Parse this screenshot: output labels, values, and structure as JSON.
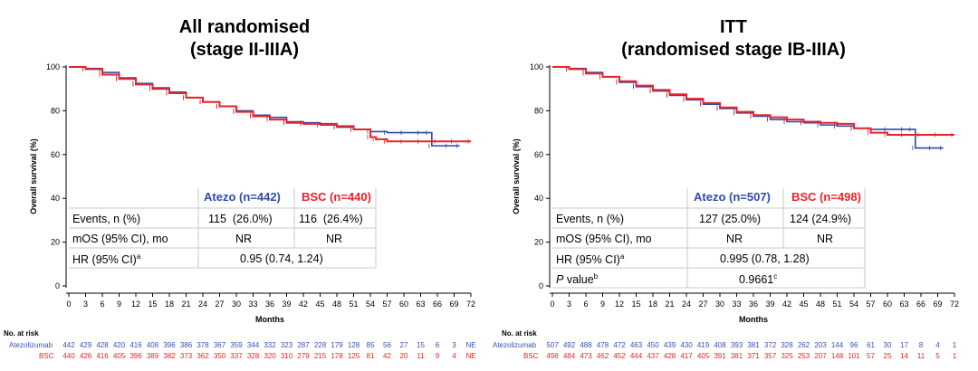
{
  "colors": {
    "atezo": "#2e4ba8",
    "bsc": "#e8232b",
    "axis": "#000000",
    "grid": "#c8c8c8"
  },
  "chart_data": [
    {
      "type": "line",
      "title": "All randomised",
      "subtitle": "(stage II-IIIA)",
      "xlabel": "Months",
      "ylabel": "Overall survival (%)",
      "xlim": [
        0,
        72
      ],
      "ylim": [
        0,
        100
      ],
      "x_ticks": [
        "0",
        "3",
        "6",
        "9",
        "12",
        "15",
        "18",
        "21",
        "24",
        "27",
        "30",
        "33",
        "36",
        "39",
        "42",
        "45",
        "48",
        "51",
        "54",
        "57",
        "60",
        "63",
        "66",
        "69",
        "72"
      ],
      "y_ticks": [
        "0",
        "20",
        "40",
        "60",
        "80",
        "100"
      ],
      "series": [
        {
          "name": "Atezo",
          "x": [
            0,
            3,
            6,
            9,
            12,
            15,
            18,
            21,
            24,
            27,
            30,
            33,
            36,
            39,
            42,
            45,
            48,
            51,
            54,
            57,
            60,
            63,
            64.5,
            65,
            68,
            70
          ],
          "values": [
            100,
            99.3,
            97.5,
            95,
            92.5,
            90.5,
            88.5,
            86,
            84,
            82,
            80,
            78,
            77,
            75,
            74.5,
            73.5,
            72.5,
            71.5,
            70.5,
            70,
            70,
            70,
            70,
            64,
            64,
            64
          ]
        },
        {
          "name": "BSC",
          "x": [
            0,
            3,
            6,
            9,
            12,
            15,
            18,
            21,
            24,
            27,
            30,
            33,
            36,
            39,
            42,
            45,
            48,
            51,
            54,
            55,
            57,
            60,
            63,
            66,
            69,
            72
          ],
          "values": [
            100,
            99,
            96.5,
            94.5,
            92,
            90,
            88,
            86,
            84,
            82,
            79.5,
            77.5,
            76,
            74.5,
            74,
            74,
            73,
            71.5,
            68,
            67,
            66,
            66,
            66,
            66,
            66,
            66
          ]
        }
      ],
      "table": {
        "header": [
          "",
          "Atezo (n=442)",
          "BSC (n=440)"
        ],
        "rows": [
          {
            "label": "Events, n (%)",
            "atezo": "115  (26.0%)",
            "bsc": "116  (26.4%)"
          },
          {
            "label": "mOS (95% CI), mo",
            "atezo": "NR",
            "bsc": "NR"
          },
          {
            "label": "HR (95% CI)",
            "sup": "a",
            "merged": "0.95 (0.74, 1.24)"
          }
        ]
      },
      "risk_table": {
        "title": "No. at risk",
        "atezo_label": "Atezolizumab",
        "bsc_label": "BSC",
        "atezo": [
          "442",
          "429",
          "428",
          "420",
          "416",
          "408",
          "396",
          "386",
          "378",
          "367",
          "359",
          "344",
          "332",
          "323",
          "287",
          "228",
          "179",
          "128",
          "85",
          "56",
          "27",
          "15",
          "6",
          "3",
          "NE"
        ],
        "bsc": [
          "440",
          "426",
          "416",
          "405",
          "396",
          "389",
          "382",
          "373",
          "362",
          "350",
          "337",
          "328",
          "320",
          "310",
          "279",
          "215",
          "178",
          "125",
          "81",
          "42",
          "20",
          "11",
          "9",
          "4",
          "NE"
        ]
      }
    },
    {
      "type": "line",
      "title": "ITT",
      "subtitle": "(randomised stage IB-IIIA)",
      "xlabel": "Months",
      "ylabel": "Overall survival (%)",
      "xlim": [
        0,
        72
      ],
      "ylim": [
        0,
        100
      ],
      "x_ticks": [
        "0",
        "3",
        "6",
        "9",
        "12",
        "15",
        "18",
        "21",
        "24",
        "27",
        "30",
        "33",
        "36",
        "39",
        "42",
        "45",
        "48",
        "51",
        "54",
        "57",
        "60",
        "63",
        "66",
        "69",
        "72"
      ],
      "y_ticks": [
        "0",
        "20",
        "40",
        "60",
        "80",
        "100"
      ],
      "series": [
        {
          "name": "Atezo",
          "x": [
            0,
            3,
            6,
            9,
            12,
            15,
            18,
            21,
            24,
            27,
            30,
            33,
            36,
            39,
            42,
            45,
            48,
            51,
            54,
            57,
            60,
            63,
            64.5,
            65,
            68,
            70
          ],
          "values": [
            100,
            99.3,
            97.5,
            95.5,
            93,
            91,
            89,
            87,
            85,
            83,
            81,
            79,
            77.5,
            76,
            75,
            74.5,
            73.5,
            73,
            72,
            71.5,
            71.5,
            71.5,
            71.5,
            63,
            63,
            63
          ]
        },
        {
          "name": "BSC",
          "x": [
            0,
            3,
            6,
            9,
            12,
            15,
            18,
            21,
            24,
            27,
            30,
            33,
            36,
            39,
            42,
            45,
            48,
            51,
            54,
            57,
            60,
            63,
            66,
            69,
            72
          ],
          "values": [
            100,
            99,
            97,
            95.5,
            93.5,
            91.5,
            89.5,
            87.5,
            85.5,
            83.5,
            81.5,
            79.5,
            78,
            77,
            76,
            75,
            74.5,
            74,
            72,
            70,
            69,
            69,
            69,
            69,
            69
          ]
        }
      ],
      "table": {
        "header": [
          "",
          "Atezo (n=507)",
          "BSC (n=498)"
        ],
        "rows": [
          {
            "label": "Events, n (%)",
            "atezo": "127 (25.0%)",
            "bsc": "124 (24.9%)"
          },
          {
            "label": "mOS (95% CI), mo",
            "atezo": "NR",
            "bsc": "NR"
          },
          {
            "label": "HR (95% CI)",
            "sup": "a",
            "merged": "0.995 (0.78, 1.28)"
          },
          {
            "label_italic": "P",
            "label": " value",
            "sup": "b",
            "merged": "0.9661",
            "merged_sup": "c"
          }
        ]
      },
      "risk_table": {
        "title": "No. at risk",
        "atezo_label": "Atezolizumab",
        "bsc_label": "BSC",
        "atezo": [
          "507",
          "492",
          "488",
          "478",
          "472",
          "463",
          "450",
          "439",
          "430",
          "419",
          "408",
          "393",
          "381",
          "372",
          "328",
          "262",
          "203",
          "144",
          "96",
          "61",
          "30",
          "17",
          "8",
          "4",
          "1"
        ],
        "bsc": [
          "498",
          "484",
          "473",
          "462",
          "452",
          "444",
          "437",
          "428",
          "417",
          "405",
          "391",
          "381",
          "371",
          "357",
          "325",
          "253",
          "207",
          "148",
          "101",
          "57",
          "25",
          "14",
          "11",
          "5",
          "1"
        ]
      }
    }
  ]
}
